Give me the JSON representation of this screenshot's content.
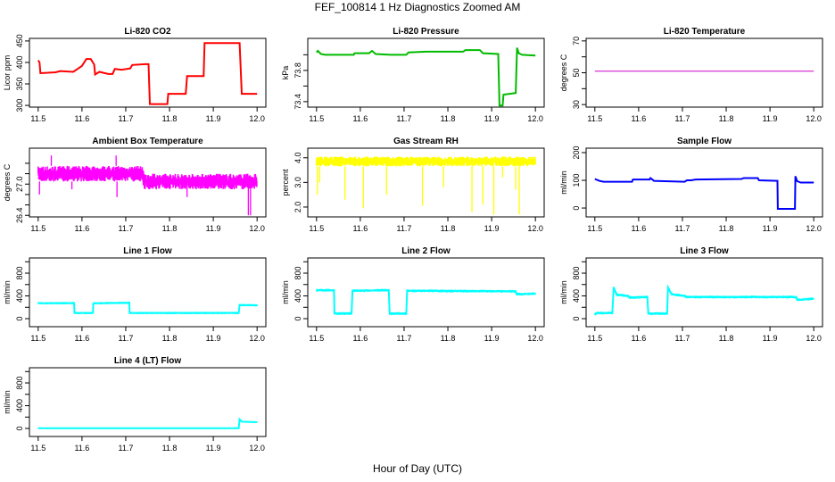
{
  "title": "FEF_100814  1 Hz Diagnostics Zoomed AM",
  "xlabel": "Hour of Day (UTC)",
  "chart_data": [
    {
      "type": "line",
      "title": "Li-820 CO2",
      "ylabel": "Licor ppm",
      "color": "#ff0000",
      "xlim": [
        11.48,
        12.02
      ],
      "ylim": [
        296,
        456
      ],
      "xticks": [
        11.5,
        11.6,
        11.7,
        11.8,
        11.9,
        12.0
      ],
      "yticks": [
        300,
        350,
        400,
        450
      ],
      "ytick_labels": [
        "300",
        "350",
        "400",
        "450"
      ],
      "x": [
        11.5,
        11.503,
        11.505,
        11.54,
        11.55,
        11.58,
        11.59,
        11.6,
        11.61,
        11.62,
        11.628,
        11.63,
        11.64,
        11.66,
        11.67,
        11.675,
        11.69,
        11.71,
        11.715,
        11.745,
        11.752,
        11.755,
        11.795,
        11.797,
        11.837,
        11.84,
        11.878,
        11.88,
        11.96,
        11.965,
        12.0
      ],
      "y": [
        405,
        400,
        375,
        377,
        380,
        378,
        385,
        392,
        408,
        408,
        395,
        372,
        378,
        373,
        373,
        385,
        383,
        386,
        394,
        396,
        396,
        303,
        303,
        327,
        327,
        368,
        368,
        445,
        445,
        327,
        327
      ]
    },
    {
      "type": "line",
      "title": "Li-820 Pressure",
      "ylabel": "kPa",
      "color": "#00bb00",
      "xlim": [
        11.48,
        12.02
      ],
      "ylim": [
        73.33,
        74.21
      ],
      "xticks": [
        11.5,
        11.6,
        11.7,
        11.8,
        11.9,
        12.0
      ],
      "yticks": [
        73.4,
        73.6,
        73.8,
        74.0
      ],
      "ytick_labels": [
        "73.4",
        "",
        "73.8",
        ""
      ],
      "x": [
        11.5,
        11.503,
        11.51,
        11.52,
        11.585,
        11.587,
        11.62,
        11.627,
        11.635,
        11.67,
        11.705,
        11.71,
        11.75,
        11.835,
        11.84,
        11.873,
        11.88,
        11.915,
        11.918,
        11.925,
        11.927,
        11.955,
        11.958,
        11.962,
        11.97,
        12.0
      ],
      "y": [
        74.03,
        74.05,
        74.01,
        74.0,
        74.0,
        74.02,
        74.02,
        74.05,
        74.01,
        74.0,
        74.0,
        74.03,
        74.04,
        74.04,
        74.06,
        74.06,
        74.02,
        74.01,
        73.35,
        73.35,
        73.49,
        73.51,
        74.09,
        74.02,
        74.0,
        73.99
      ]
    },
    {
      "type": "line",
      "title": "Li-820 Temperature",
      "ylabel": "degrees C",
      "color": "#cc00cc",
      "xlim": [
        11.48,
        12.02
      ],
      "ylim": [
        28.4,
        71.6
      ],
      "xticks": [
        11.5,
        11.6,
        11.7,
        11.8,
        11.9,
        12.0
      ],
      "yticks": [
        30,
        40,
        50,
        60,
        70
      ],
      "ytick_labels": [
        "30",
        "",
        "50",
        "",
        "70"
      ],
      "x": [
        11.5,
        12.0
      ],
      "y": [
        51,
        51
      ]
    },
    {
      "type": "line",
      "title": "Ambient Box Temperature",
      "ylabel": "degrees C",
      "color": "#ff00ff",
      "xlim": [
        11.48,
        12.02
      ],
      "ylim": [
        26.37,
        27.69
      ],
      "xticks": [
        11.5,
        11.6,
        11.7,
        11.8,
        11.9,
        12.0
      ],
      "yticks": [
        26.4,
        26.6,
        26.8,
        27.0,
        27.2,
        27.4
      ],
      "ytick_labels": [
        "26.4",
        "",
        "",
        "27.0",
        "",
        ""
      ],
      "x": [
        11.5,
        11.74,
        11.7401,
        12.0
      ],
      "y": [
        27.2,
        27.2,
        27.05,
        27.05
      ],
      "noise_band": 0.15,
      "spikes": [
        [
          11.503,
          26.8
        ],
        [
          11.53,
          27.55
        ],
        [
          11.577,
          26.9
        ],
        [
          11.678,
          27.55
        ],
        [
          11.68,
          26.75
        ],
        [
          11.84,
          26.75
        ],
        [
          11.98,
          26.4
        ],
        [
          11.985,
          26.4
        ]
      ]
    },
    {
      "type": "line",
      "title": "Gas Stream RH",
      "ylabel": "percent",
      "color": "#ffff00",
      "xlim": [
        11.48,
        12.02
      ],
      "ylim": [
        1.6,
        4.39
      ],
      "xticks": [
        11.5,
        11.6,
        11.7,
        11.8,
        11.9,
        12.0
      ],
      "yticks": [
        2.0,
        3.0,
        4.0
      ],
      "ytick_labels": [
        "2.0",
        "3.0",
        "4.0"
      ],
      "x": [
        11.5,
        12.0
      ],
      "y": [
        3.85,
        3.85
      ],
      "noise_band": 0.2,
      "spikes": [
        [
          11.502,
          2.5
        ],
        [
          11.507,
          3.0
        ],
        [
          11.565,
          2.3
        ],
        [
          11.607,
          1.95
        ],
        [
          11.66,
          2.5
        ],
        [
          11.742,
          2.05
        ],
        [
          11.79,
          2.8
        ],
        [
          11.855,
          1.8
        ],
        [
          11.88,
          2.1
        ],
        [
          11.905,
          1.7
        ],
        [
          11.925,
          3.2
        ],
        [
          11.955,
          2.7
        ],
        [
          11.963,
          1.7
        ]
      ]
    },
    {
      "type": "line",
      "title": "Sample Flow",
      "ylabel": "ml/min",
      "color": "#0000ff",
      "xlim": [
        11.48,
        12.02
      ],
      "ylim": [
        -32,
        216
      ],
      "xticks": [
        11.5,
        11.6,
        11.7,
        11.8,
        11.9,
        12.0
      ],
      "yticks": [
        0,
        100,
        200
      ],
      "ytick_labels": [
        "0",
        "100",
        "200"
      ],
      "x": [
        11.5,
        11.51,
        11.52,
        11.585,
        11.587,
        11.625,
        11.627,
        11.635,
        11.65,
        11.705,
        11.71,
        11.72,
        11.73,
        11.835,
        11.84,
        11.872,
        11.875,
        11.917,
        11.918,
        11.957,
        11.958,
        11.962,
        11.97,
        12.0
      ],
      "y": [
        105,
        98,
        95,
        95,
        103,
        103,
        108,
        98,
        97,
        95,
        100,
        100,
        103,
        105,
        108,
        108,
        100,
        98,
        -3,
        -3,
        115,
        97,
        92,
        92
      ]
    },
    {
      "type": "line",
      "title": "Line 1 Flow",
      "ylabel": "ml/min",
      "color": "#00ffff",
      "xlim": [
        11.48,
        12.02
      ],
      "ylim": [
        -141,
        1067
      ],
      "xticks": [
        11.5,
        11.6,
        11.7,
        11.8,
        11.9,
        12.0
      ],
      "yticks": [
        0,
        200,
        400,
        600,
        800,
        1000
      ],
      "ytick_labels": [
        "0",
        "",
        "400",
        "",
        "800",
        ""
      ],
      "x": [
        11.5,
        11.582,
        11.583,
        11.625,
        11.626,
        11.708,
        11.709,
        11.958,
        11.96,
        12.0
      ],
      "y": [
        270,
        275,
        100,
        100,
        270,
        280,
        100,
        100,
        240,
        235
      ],
      "noise_band": 20
    },
    {
      "type": "line",
      "title": "Line 2 Flow",
      "ylabel": "ml/min",
      "color": "#00ffff",
      "xlim": [
        11.48,
        12.02
      ],
      "ylim": [
        -141,
        1067
      ],
      "xticks": [
        11.5,
        11.6,
        11.7,
        11.8,
        11.9,
        12.0
      ],
      "yticks": [
        0,
        200,
        400,
        600,
        800,
        1000
      ],
      "ytick_labels": [
        "0",
        "",
        "400",
        "",
        "800",
        ""
      ],
      "x": [
        11.5,
        11.54,
        11.541,
        11.58,
        11.582,
        11.665,
        11.667,
        11.705,
        11.707,
        11.955,
        11.957,
        12.0
      ],
      "y": [
        500,
        500,
        90,
        90,
        490,
        500,
        90,
        90,
        490,
        480,
        430,
        440
      ],
      "noise_band": 25
    },
    {
      "type": "line",
      "title": "Line 3 Flow",
      "ylabel": "ml/min",
      "color": "#00ffff",
      "xlim": [
        11.48,
        12.02
      ],
      "ylim": [
        -141,
        1067
      ],
      "xticks": [
        11.5,
        11.6,
        11.7,
        11.8,
        11.9,
        12.0
      ],
      "yticks": [
        0,
        200,
        400,
        600,
        800,
        1000
      ],
      "ytick_labels": [
        "0",
        "",
        "400",
        "",
        "800",
        ""
      ],
      "x": [
        11.5,
        11.505,
        11.54,
        11.543,
        11.55,
        11.575,
        11.58,
        11.62,
        11.622,
        11.665,
        11.667,
        11.675,
        11.705,
        11.71,
        11.96,
        11.962,
        12.0
      ],
      "y": [
        80,
        100,
        100,
        550,
        420,
        400,
        370,
        380,
        90,
        90,
        550,
        430,
        400,
        380,
        380,
        330,
        350
      ],
      "noise_band": 25
    },
    {
      "type": "line",
      "title": "Line 4 (LT) Flow",
      "ylabel": "ml/min",
      "color": "#00ffff",
      "xlim": [
        11.48,
        12.02
      ],
      "ylim": [
        -141,
        1067
      ],
      "xticks": [
        11.5,
        11.6,
        11.7,
        11.8,
        11.9,
        12.0
      ],
      "yticks": [
        0,
        200,
        400,
        600,
        800,
        1000
      ],
      "ytick_labels": [
        "0",
        "",
        "400",
        "",
        "800",
        ""
      ],
      "x": [
        11.5,
        11.958,
        11.96,
        11.965,
        12.0
      ],
      "y": [
        5,
        5,
        160,
        120,
        110
      ],
      "noise_band": 10
    }
  ]
}
